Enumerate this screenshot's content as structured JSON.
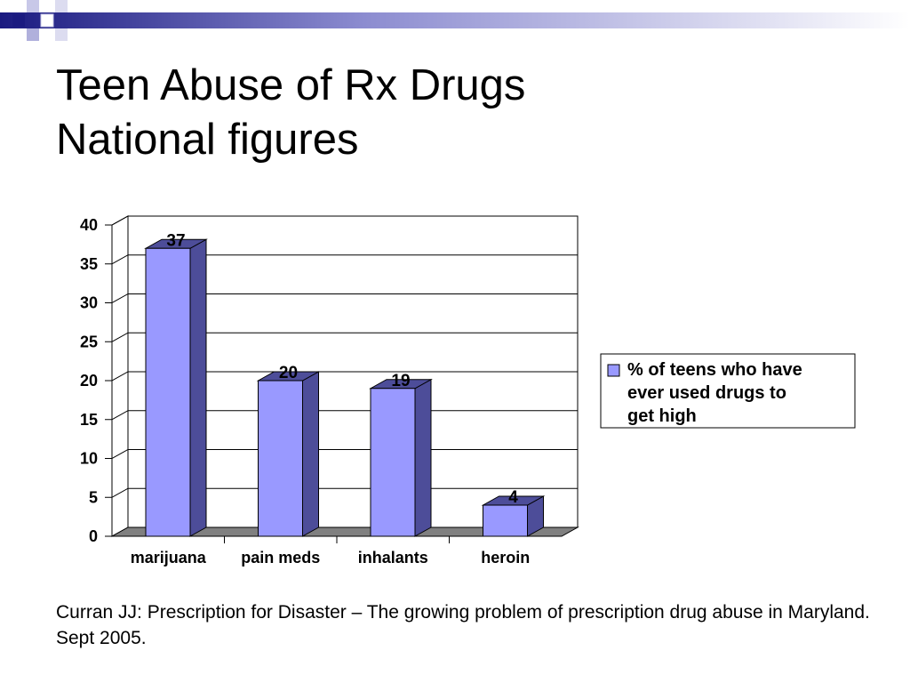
{
  "slide": {
    "title_line1": "Teen Abuse of Rx Drugs",
    "title_line2": "National figures",
    "citation": "Curran JJ: Prescription for Disaster – The growing problem of prescription drug abuse in Maryland. Sept 2005."
  },
  "colors": {
    "header_dark": "#1a1a80",
    "header_mid": "#8c8cd0",
    "bar_front": "#9999ff",
    "bar_side": "#4d4d99",
    "floor": "#808080"
  },
  "chart_data": {
    "type": "bar",
    "categories": [
      "marijuana",
      "pain meds",
      "inhalants",
      "heroin"
    ],
    "series": [
      {
        "name": "% of teens who have ever used drugs to get high",
        "values": [
          37,
          20,
          19,
          4
        ]
      }
    ],
    "data_labels": [
      "37",
      "20",
      "19",
      "4"
    ],
    "yticks": [
      "0",
      "5",
      "10",
      "15",
      "20",
      "25",
      "30",
      "35",
      "40"
    ],
    "ylim": [
      0,
      40
    ],
    "legend_lines": [
      "% of teens who have",
      "ever used drugs to",
      "get high"
    ],
    "legend_position": "right",
    "grid": true,
    "style": "3d-column"
  }
}
